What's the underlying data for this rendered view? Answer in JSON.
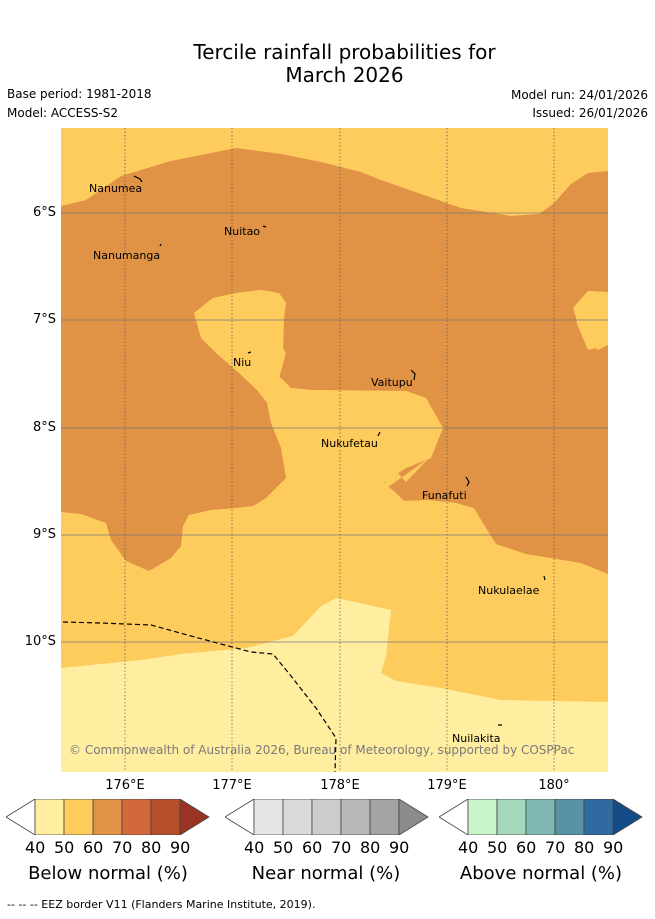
{
  "title_line1": "Tercile rainfall probabilities for",
  "title_line2": "March 2026",
  "meta": {
    "base_period": "Base period: 1981-2018",
    "model": "Model: ACCESS-S2",
    "model_run": "Model run: 24/01/2026",
    "issued": "Issued: 26/01/2026"
  },
  "lat_labels": [
    "6°S",
    "7°S",
    "8°S",
    "9°S",
    "10°S"
  ],
  "lon_labels": [
    "176°E",
    "177°E",
    "178°E",
    "179°E",
    "180°"
  ],
  "islands": [
    "Nanumea",
    "Nuitao",
    "Nanumanga",
    "Niu",
    "Vaitupu",
    "Nukufetau",
    "Funafuti",
    "Nukulaelae",
    "Nuilakita"
  ],
  "copyright": "© Commonwealth of Australia 2026, Bureau of Meteorology, supported by COSPPac",
  "colorbars": [
    {
      "label": "Below normal (%)",
      "ticks": [
        "40",
        "50",
        "60",
        "70",
        "80",
        "90"
      ],
      "colors": [
        "#ffffff",
        "#ffeda0",
        "#fecc5c",
        "#e09345",
        "#d2693a",
        "#b44f2a",
        "#9b3322"
      ]
    },
    {
      "label": "Near normal (%)",
      "ticks": [
        "40",
        "50",
        "60",
        "70",
        "80",
        "90"
      ],
      "colors": [
        "#ffffff",
        "#e6e6e6",
        "#d9d9d9",
        "#cccccc",
        "#b8b8b8",
        "#a3a3a3",
        "#8c8c8c"
      ]
    },
    {
      "label": "Above normal (%)",
      "ticks": [
        "40",
        "50",
        "60",
        "70",
        "80",
        "90"
      ],
      "colors": [
        "#ffffff",
        "#c9f5c8",
        "#a3d8bc",
        "#80b8b3",
        "#5892a4",
        "#2f6aa0",
        "#134b86"
      ]
    }
  ],
  "legend_footer": "-- -- -- EEZ border V11 (Flanders Marine Institute, 2019)."
}
